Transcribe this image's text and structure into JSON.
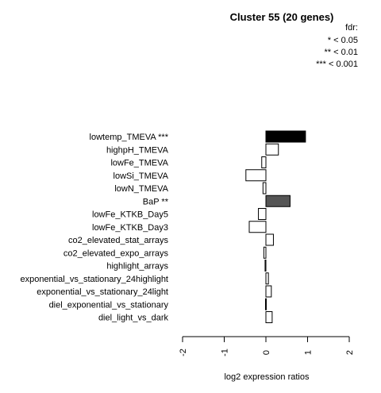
{
  "chart_data": {
    "type": "bar",
    "orientation": "horizontal",
    "title": "Cluster 55 (20 genes)",
    "legend": {
      "title": "fdr:",
      "entries": [
        "* < 0.05",
        "** < 0.01",
        "*** < 0.001"
      ],
      "placement": "top-right"
    },
    "xlabel": "log2 expression ratios",
    "xlim": [
      -2,
      2
    ],
    "xticks": [
      -2,
      -1,
      0,
      1,
      2
    ],
    "xtick_labels": [
      "-2",
      "-1",
      "0",
      "1",
      "2"
    ],
    "grid": false,
    "categories": [
      "lowtemp_TMEVA ***",
      "highpH_TMEVA",
      "lowFe_TMEVA",
      "lowSi_TMEVA",
      "lowN_TMEVA",
      "BaP **",
      "lowFe_KTKB_Day5",
      "lowFe_KTKB_Day3",
      "co2_elevated_stat_arrays",
      "co2_elevated_expo_arrays",
      "highlight_arrays",
      "exponential_vs_stationary_24highlight",
      "exponential_vs_stationary_24light",
      "diel_exponential_vs_stationary",
      "diel_light_vs_dark"
    ],
    "values": [
      0.95,
      0.3,
      -0.1,
      -0.48,
      -0.07,
      0.58,
      -0.18,
      -0.4,
      0.18,
      -0.05,
      -0.02,
      0.06,
      0.13,
      -0.01,
      0.15
    ],
    "bar_colors": [
      "#000000",
      "#ffffff",
      "#ffffff",
      "#ffffff",
      "#ffffff",
      "#555555",
      "#ffffff",
      "#ffffff",
      "#ffffff",
      "#ffffff",
      "#ffffff",
      "#ffffff",
      "#ffffff",
      "#ffffff",
      "#ffffff"
    ]
  }
}
